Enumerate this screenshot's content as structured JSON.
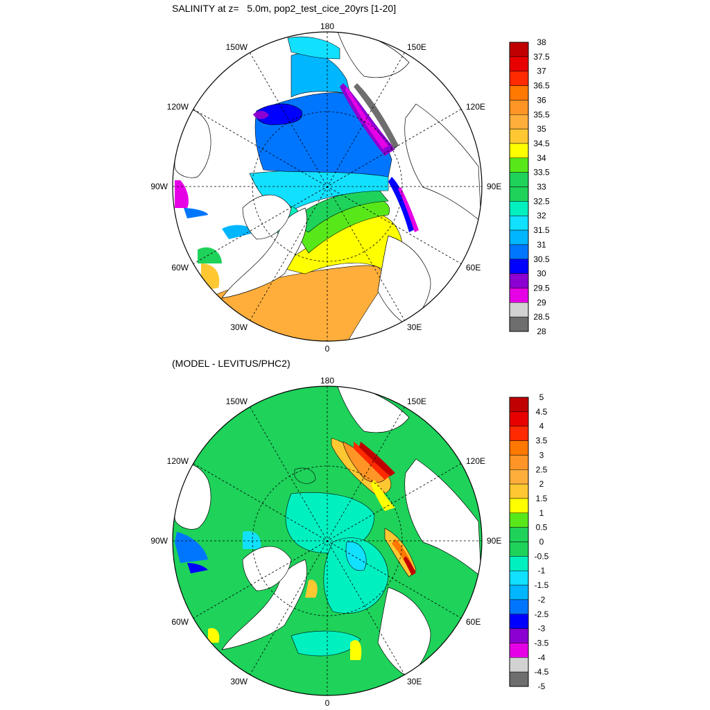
{
  "title_top": "SALINITY at z=   5.0m, pop2_test_cice_20yrs [1-20]",
  "title_bottom": "(MODEL - LEVITUS/PHC2)",
  "longitude_labels": {
    "top": "180",
    "bottom": "0",
    "left": "90W",
    "right": "90E",
    "ul1": "150W",
    "ul2": "120W",
    "ur1": "150E",
    "ur2": "120E",
    "ll1": "60W",
    "ll2": "30W",
    "lr1": "60E",
    "lr2": "30E"
  },
  "colorbar_top": {
    "labels": [
      "38",
      "37.5",
      "37",
      "36.5",
      "36",
      "35.5",
      "35",
      "34.5",
      "34",
      "33.5",
      "33",
      "32.5",
      "32",
      "31.5",
      "31",
      "30.5",
      "30",
      "29.5",
      "29",
      "28.5",
      "28"
    ]
  },
  "colorbar_bottom": {
    "labels": [
      "5",
      "4.5",
      "4",
      "3.5",
      "3",
      "2.5",
      "2",
      "1.5",
      "1",
      "0.5",
      "0",
      "-0.5",
      "-1",
      "-1.5",
      "-2",
      "-2.5",
      "-3",
      "-3.5",
      "-4",
      "-4.5",
      "-5"
    ]
  },
  "colors": {
    "palette": [
      "#c00000",
      "#e80000",
      "#ff2a00",
      "#ff7800",
      "#ff9526",
      "#ffae3c",
      "#ffc832",
      "#ffff00",
      "#58e81a",
      "#1ed25a",
      "#00f0c0",
      "#12e0ff",
      "#00b6ff",
      "#0076ff",
      "#0000ff",
      "#8c00d2",
      "#e600e6",
      "#d2d2d2",
      "#6e6e6e"
    ]
  }
}
